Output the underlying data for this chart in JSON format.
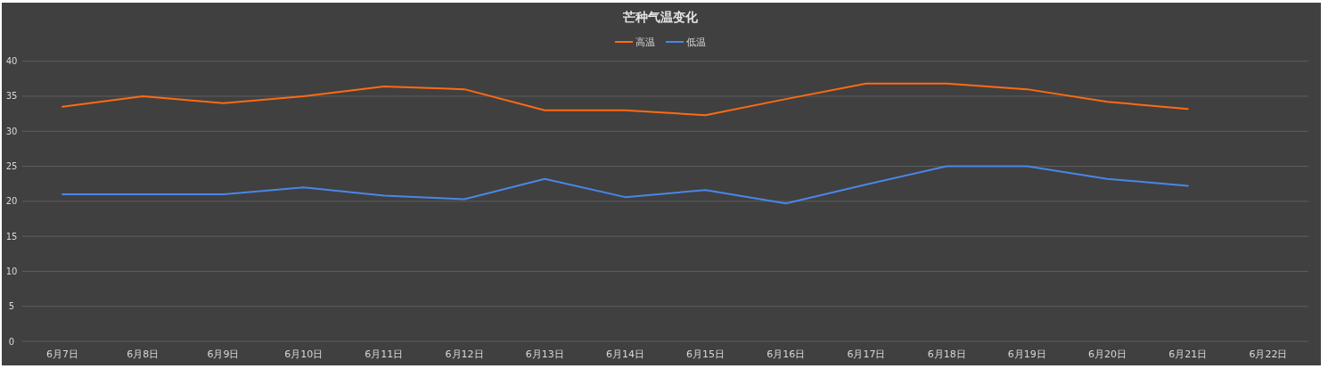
{
  "chart_data": {
    "type": "line",
    "title": "芒种气温变化",
    "categories": [
      "6月7日",
      "6月8日",
      "6月9日",
      "6月10日",
      "6月11日",
      "6月12日",
      "6月13日",
      "6月14日",
      "6月15日",
      "6月16日",
      "6月17日",
      "6月18日",
      "6月19日",
      "6月20日",
      "6月21日",
      "6月22日"
    ],
    "series": [
      {
        "name": "高温",
        "color": "#ff6a13",
        "values": [
          33.5,
          35,
          34,
          35,
          36.4,
          36,
          33,
          33,
          32.3,
          34.6,
          36.8,
          36.8,
          36,
          34.2,
          33.2,
          null
        ]
      },
      {
        "name": "低温",
        "color": "#4a86e8",
        "values": [
          21,
          21,
          21,
          22,
          20.8,
          20.3,
          23.2,
          20.6,
          21.6,
          19.7,
          22.4,
          25,
          25,
          23.2,
          22.2,
          null
        ]
      }
    ],
    "ylim": [
      0,
      40
    ],
    "yticks": [
      0,
      5,
      10,
      15,
      20,
      25,
      30,
      35,
      40
    ],
    "grid": "y",
    "legend": "top",
    "marker": "none",
    "line_style": "solid"
  }
}
